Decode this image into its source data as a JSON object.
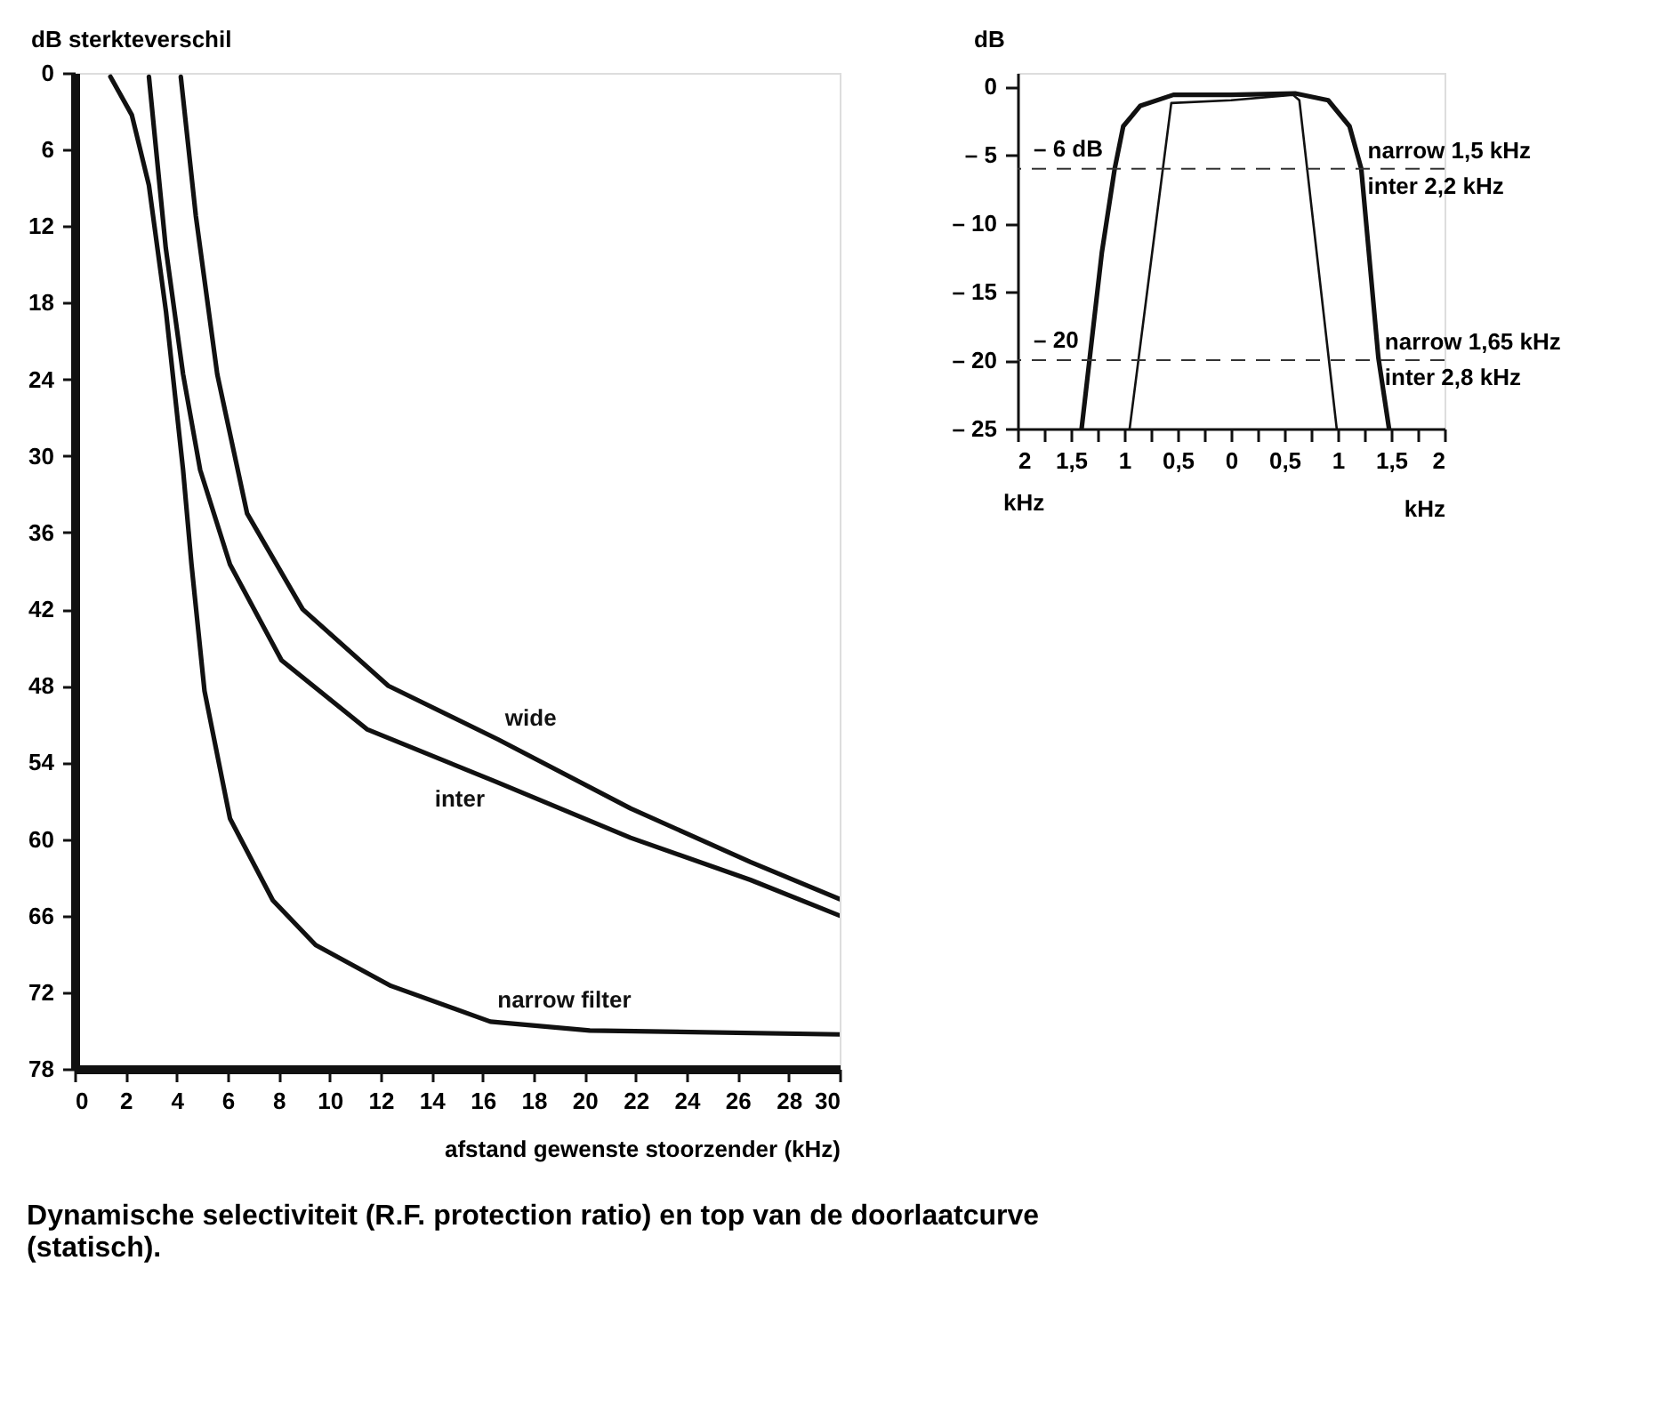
{
  "chart_data": [
    {
      "type": "line",
      "xlabel": "afstand gewenste stoorzender (kHz)",
      "ylabel": "dB sterkteverschil",
      "xlim": [
        0,
        30
      ],
      "ylim": [
        78,
        0
      ],
      "xticks": [
        0,
        2,
        4,
        6,
        8,
        10,
        12,
        14,
        16,
        18,
        20,
        22,
        24,
        26,
        28,
        30
      ],
      "yticks": [
        0,
        6,
        12,
        18,
        24,
        30,
        36,
        42,
        48,
        54,
        60,
        66,
        72,
        78
      ],
      "grid": false,
      "marker": "none",
      "line_style": "solid",
      "series": [
        {
          "name": "narrow filter",
          "color": "#111111",
          "x": [
            1.4,
            2.24,
            2.91,
            3.58,
            4.25,
            4.58,
            5.09,
            6.09,
            7.77,
            9.45,
            12.4,
            16.3,
            20.2,
            30
          ],
          "values": [
            0.3,
            3.3,
            8.8,
            18.7,
            31.1,
            38.5,
            48.4,
            58.4,
            64.8,
            68.3,
            71.5,
            74.3,
            75,
            75.3
          ]
        },
        {
          "name": "inter",
          "color": "#111111",
          "x": [
            2.91,
            3.57,
            4.25,
            4.92,
            6.09,
            8.11,
            11.46,
            16.5,
            21.8,
            26.5,
            30
          ],
          "values": [
            0.3,
            13.7,
            23.6,
            31.1,
            38.5,
            46,
            51.4,
            55.5,
            59.9,
            63.2,
            66
          ]
        },
        {
          "name": "wide",
          "color": "#111111",
          "x": [
            4.16,
            4.75,
            5.59,
            6.76,
            8.94,
            12.3,
            16.6,
            21.8,
            26.5,
            30
          ],
          "values": [
            0.3,
            11.2,
            23.6,
            34.5,
            42,
            48,
            52.2,
            57.6,
            61.8,
            64.7
          ]
        }
      ],
      "annotations": [
        "Dynamische selectiviteit (R.F. protection ratio) en top van de doorlaatcurve (statisch)."
      ]
    },
    {
      "type": "line",
      "xlabel": "kHz",
      "ylabel": "dB",
      "xlim": [
        -2,
        2
      ],
      "ylim": [
        -25,
        1
      ],
      "xticks": [
        {
          "value": -2,
          "label": "2"
        },
        {
          "value": -1.75,
          "label": null
        },
        {
          "value": -1.5,
          "label": "1,5"
        },
        {
          "value": -1.25,
          "label": null
        },
        {
          "value": -1,
          "label": "1"
        },
        {
          "value": -0.75,
          "label": null
        },
        {
          "value": -0.5,
          "label": "0,5"
        },
        {
          "value": -0.25,
          "label": null
        },
        0,
        {
          "value": 0.25,
          "label": null
        },
        {
          "value": 0.5,
          "label": "0,5"
        },
        {
          "value": 0.75,
          "label": null
        },
        {
          "value": 1,
          "label": "1"
        },
        {
          "value": 1.25,
          "label": null
        },
        {
          "value": 1.5,
          "label": "1,5"
        },
        {
          "value": 1.75,
          "label": null
        },
        {
          "value": 2,
          "label": "2"
        }
      ],
      "yticks": [
        0,
        {
          "value": -5,
          "label": "– 5"
        },
        {
          "value": -10,
          "label": "– 10"
        },
        {
          "value": -15,
          "label": "– 15"
        },
        {
          "value": -20,
          "label": "– 20"
        },
        {
          "value": -25,
          "label": "– 25"
        }
      ],
      "grid": false,
      "marker": "none",
      "line_style": "solid",
      "series": [
        {
          "color": "#111111",
          "x": [
            -1.4,
            -1.21,
            -1.09,
            -1.01,
            -0.85,
            -0.54,
            0,
            0.6,
            0.91,
            1.11,
            1.22,
            1.38,
            1.48
          ],
          "values": [
            -25,
            -12.1,
            -6,
            -2.9,
            -1.4,
            -0.6,
            -0.6,
            -0.5,
            -1,
            -2.9,
            -6,
            -19.8,
            -25
          ]
        },
        {
          "color": "#111111",
          "x": [
            -0.95,
            -0.56,
            0,
            0.58,
            0.64,
            0.99
          ],
          "values": [
            -25,
            -1.2,
            -1,
            -0.6,
            -1,
            -25
          ]
        }
      ],
      "ref_lines": [
        {
          "axis": "y",
          "value": -6,
          "label": "– 6 dB",
          "line_style": "dashed"
        },
        {
          "axis": "y",
          "value": -20,
          "label": "– 20",
          "line_style": "dashed"
        }
      ],
      "annotations": [
        "narrow 1,5 kHz",
        "inter 2,2 kHz",
        "narrow 1,65 kHz",
        "inter 2,8 kHz",
        "kHz"
      ]
    }
  ]
}
